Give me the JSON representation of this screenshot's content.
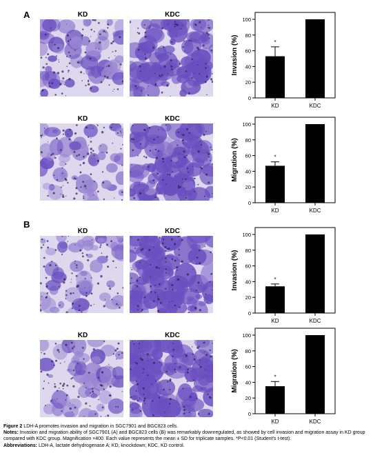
{
  "panels": [
    {
      "letter": "A",
      "rows": [
        {
          "left_label": "KD",
          "right_label": "KDC",
          "chart_index": 0
        },
        {
          "left_label": "KD",
          "right_label": "KDC",
          "chart_index": 1
        }
      ]
    },
    {
      "letter": "B",
      "rows": [
        {
          "left_label": "KD",
          "right_label": "KDC",
          "chart_index": 2
        },
        {
          "left_label": "KD",
          "right_label": "KDC",
          "chart_index": 3
        }
      ]
    }
  ],
  "colors": {
    "bar": "#000000",
    "stain_light": "#ddd8ee",
    "stain_dark": "#6a4fc0",
    "stain_mid": "#9a86d2"
  },
  "chart_data": [
    {
      "type": "bar",
      "categories": [
        "KD",
        "KDC"
      ],
      "values": [
        53,
        100
      ],
      "errors": [
        12,
        0
      ],
      "significance": [
        "*",
        ""
      ],
      "ylabel": "Invasion (%)",
      "ylim": [
        0,
        100
      ],
      "yticks": [
        0,
        20,
        40,
        60,
        80,
        100
      ]
    },
    {
      "type": "bar",
      "categories": [
        "KD",
        "KDC"
      ],
      "values": [
        47,
        100
      ],
      "errors": [
        5,
        0
      ],
      "significance": [
        "*",
        ""
      ],
      "ylabel": "Migration (%)",
      "ylim": [
        0,
        100
      ],
      "yticks": [
        0,
        20,
        40,
        60,
        80,
        100
      ]
    },
    {
      "type": "bar",
      "categories": [
        "KD",
        "KDC"
      ],
      "values": [
        34,
        100
      ],
      "errors": [
        3,
        0
      ],
      "significance": [
        "*",
        ""
      ],
      "ylabel": "Invasion (%)",
      "ylim": [
        0,
        100
      ],
      "yticks": [
        0,
        20,
        40,
        60,
        80,
        100
      ]
    },
    {
      "type": "bar",
      "categories": [
        "KD",
        "KDC"
      ],
      "values": [
        35,
        100
      ],
      "errors": [
        6,
        0
      ],
      "significance": [
        "*",
        ""
      ],
      "ylabel": "Migration (%)",
      "ylim": [
        0,
        100
      ],
      "yticks": [
        0,
        20,
        40,
        60,
        80,
        100
      ]
    }
  ],
  "caption": {
    "title_label": "Figure 2",
    "title_text": "LDH-A promotes invasion and migration in SGC7901 and BGC823 cells.",
    "notes_label": "Notes:",
    "notes_text": "Invasion and migration ability of SGC7901 (A) and BGC823 cells (B) was remarkably downregulated, as showed by cell invasion and migration assay in KD group compared with KDC group. Magnification ×400. Each value represents the mean ± SD for triplicate samples. *P<0.01 (Student’s t-test).",
    "abbr_label": "Abbreviations:",
    "abbr_text": "LDH-A, lactate dehydrogenase A; KD, knockdown; KDC, KD control."
  }
}
